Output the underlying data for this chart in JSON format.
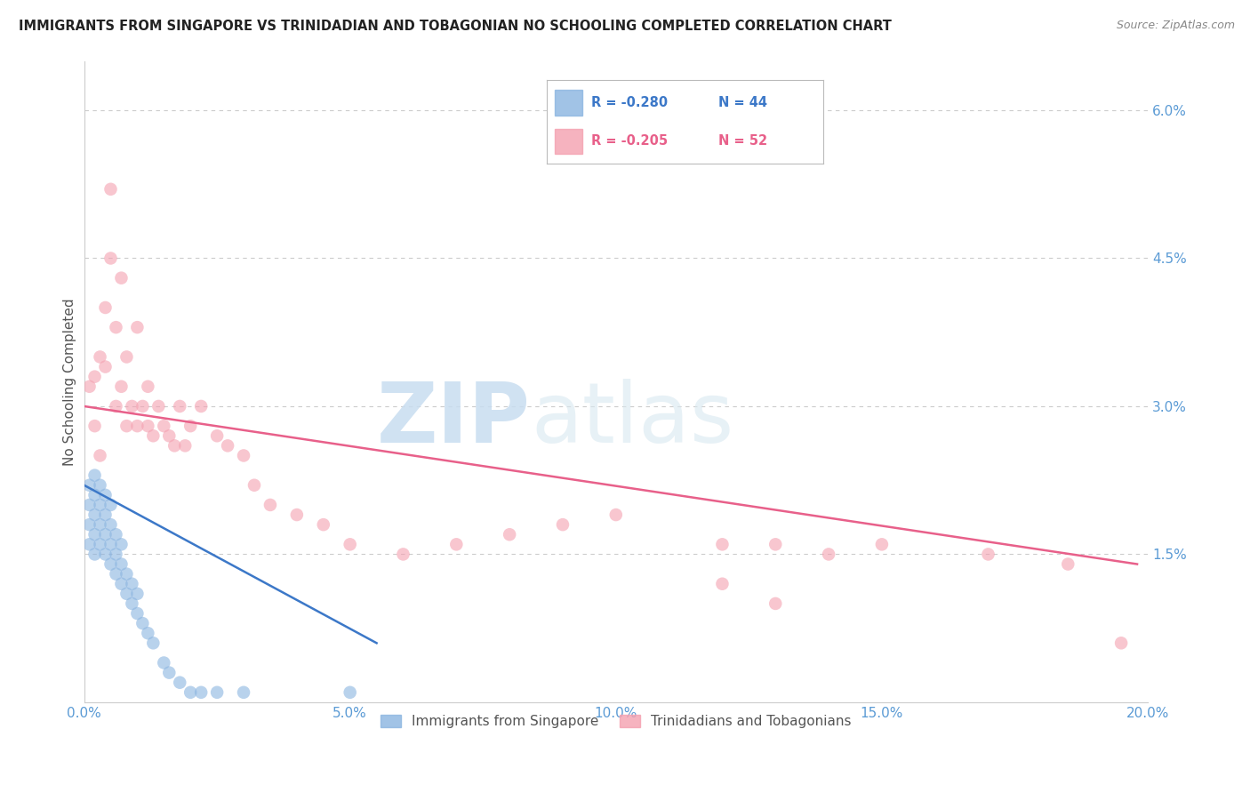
{
  "title": "IMMIGRANTS FROM SINGAPORE VS TRINIDADIAN AND TOBAGONIAN NO SCHOOLING COMPLETED CORRELATION CHART",
  "source": "Source: ZipAtlas.com",
  "ylabel": "No Schooling Completed",
  "xlim": [
    0.0,
    0.2
  ],
  "ylim": [
    0.0,
    0.065
  ],
  "xticks": [
    0.0,
    0.05,
    0.1,
    0.15,
    0.2
  ],
  "xtick_labels": [
    "0.0%",
    "5.0%",
    "10.0%",
    "15.0%",
    "20.0%"
  ],
  "yticks_right": [
    0.015,
    0.03,
    0.045,
    0.06
  ],
  "ytick_labels_right": [
    "1.5%",
    "3.0%",
    "4.5%",
    "6.0%"
  ],
  "blue_color": "#8ab4e0",
  "pink_color": "#f4a0b0",
  "blue_line_color": "#3c78c8",
  "pink_line_color": "#e8608a",
  "legend_blue_R": "R = -0.280",
  "legend_blue_N": "N = 44",
  "legend_pink_R": "R = -0.205",
  "legend_pink_N": "N = 52",
  "legend_label_blue": "Immigrants from Singapore",
  "legend_label_pink": "Trinidadians and Tobagonians",
  "watermark_zip": "ZIP",
  "watermark_atlas": "atlas",
  "blue_scatter_x": [
    0.001,
    0.001,
    0.001,
    0.001,
    0.002,
    0.002,
    0.002,
    0.002,
    0.002,
    0.003,
    0.003,
    0.003,
    0.003,
    0.004,
    0.004,
    0.004,
    0.004,
    0.005,
    0.005,
    0.005,
    0.005,
    0.006,
    0.006,
    0.006,
    0.007,
    0.007,
    0.007,
    0.008,
    0.008,
    0.009,
    0.009,
    0.01,
    0.01,
    0.011,
    0.012,
    0.013,
    0.015,
    0.016,
    0.018,
    0.02,
    0.022,
    0.025,
    0.03,
    0.05
  ],
  "blue_scatter_y": [
    0.016,
    0.018,
    0.02,
    0.022,
    0.015,
    0.017,
    0.019,
    0.021,
    0.023,
    0.016,
    0.018,
    0.02,
    0.022,
    0.015,
    0.017,
    0.019,
    0.021,
    0.014,
    0.016,
    0.018,
    0.02,
    0.013,
    0.015,
    0.017,
    0.012,
    0.014,
    0.016,
    0.011,
    0.013,
    0.01,
    0.012,
    0.009,
    0.011,
    0.008,
    0.007,
    0.006,
    0.004,
    0.003,
    0.002,
    0.001,
    0.001,
    0.001,
    0.001,
    0.001
  ],
  "pink_scatter_x": [
    0.001,
    0.002,
    0.002,
    0.003,
    0.003,
    0.004,
    0.004,
    0.005,
    0.005,
    0.006,
    0.006,
    0.007,
    0.007,
    0.008,
    0.008,
    0.009,
    0.01,
    0.01,
    0.011,
    0.012,
    0.012,
    0.013,
    0.014,
    0.015,
    0.016,
    0.017,
    0.018,
    0.019,
    0.02,
    0.022,
    0.025,
    0.027,
    0.03,
    0.032,
    0.035,
    0.04,
    0.045,
    0.05,
    0.06,
    0.07,
    0.08,
    0.09,
    0.1,
    0.12,
    0.13,
    0.14,
    0.15,
    0.17,
    0.185,
    0.195,
    0.12,
    0.13
  ],
  "pink_scatter_y": [
    0.032,
    0.033,
    0.028,
    0.035,
    0.025,
    0.034,
    0.04,
    0.045,
    0.052,
    0.03,
    0.038,
    0.032,
    0.043,
    0.028,
    0.035,
    0.03,
    0.028,
    0.038,
    0.03,
    0.028,
    0.032,
    0.027,
    0.03,
    0.028,
    0.027,
    0.026,
    0.03,
    0.026,
    0.028,
    0.03,
    0.027,
    0.026,
    0.025,
    0.022,
    0.02,
    0.019,
    0.018,
    0.016,
    0.015,
    0.016,
    0.017,
    0.018,
    0.019,
    0.016,
    0.016,
    0.015,
    0.016,
    0.015,
    0.014,
    0.006,
    0.012,
    0.01
  ],
  "blue_line_x": [
    0.0,
    0.055
  ],
  "blue_line_y": [
    0.022,
    0.006
  ],
  "pink_line_x": [
    0.0,
    0.198
  ],
  "pink_line_y": [
    0.03,
    0.014
  ],
  "title_color": "#222222",
  "source_color": "#888888",
  "axis_color": "#5b9bd5",
  "grid_color": "#cccccc",
  "background_color": "#ffffff"
}
